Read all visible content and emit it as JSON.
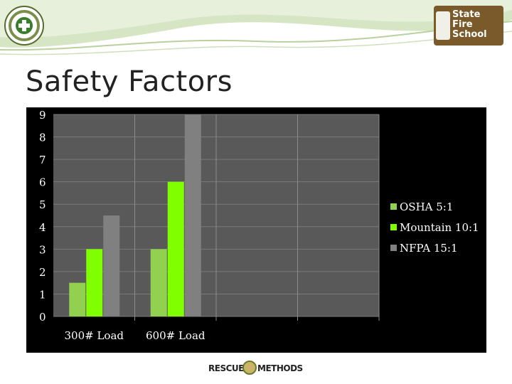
{
  "slide": {
    "title": "Safety Factors"
  },
  "footer": {
    "logo_word_left": "RESCUE",
    "logo_word_right": "METHODS"
  },
  "header": {
    "right_logo_line1": "State",
    "right_logo_line2": "Fire School"
  },
  "colors": {
    "osha": "#92d050",
    "mountain": "#7fff00",
    "nfpa": "#808080",
    "plot_bg": "#595959",
    "chart_bg": "#000000",
    "banner_green": "#c5d9b0"
  },
  "chart_data": {
    "type": "bar",
    "categories": [
      "300# Load",
      "600# Load"
    ],
    "series": [
      {
        "name": "OSHA 5:1",
        "values": [
          1.5,
          3
        ]
      },
      {
        "name": "Mountain 10:1",
        "values": [
          3,
          6
        ]
      },
      {
        "name": "NFPA 15:1",
        "values": [
          4.5,
          9
        ]
      }
    ],
    "ylim": [
      0,
      9
    ],
    "yticks": [
      "0",
      "1",
      "2",
      "3",
      "4",
      "5",
      "6",
      "7",
      "8",
      "9"
    ],
    "grid": true,
    "legend": "right"
  }
}
